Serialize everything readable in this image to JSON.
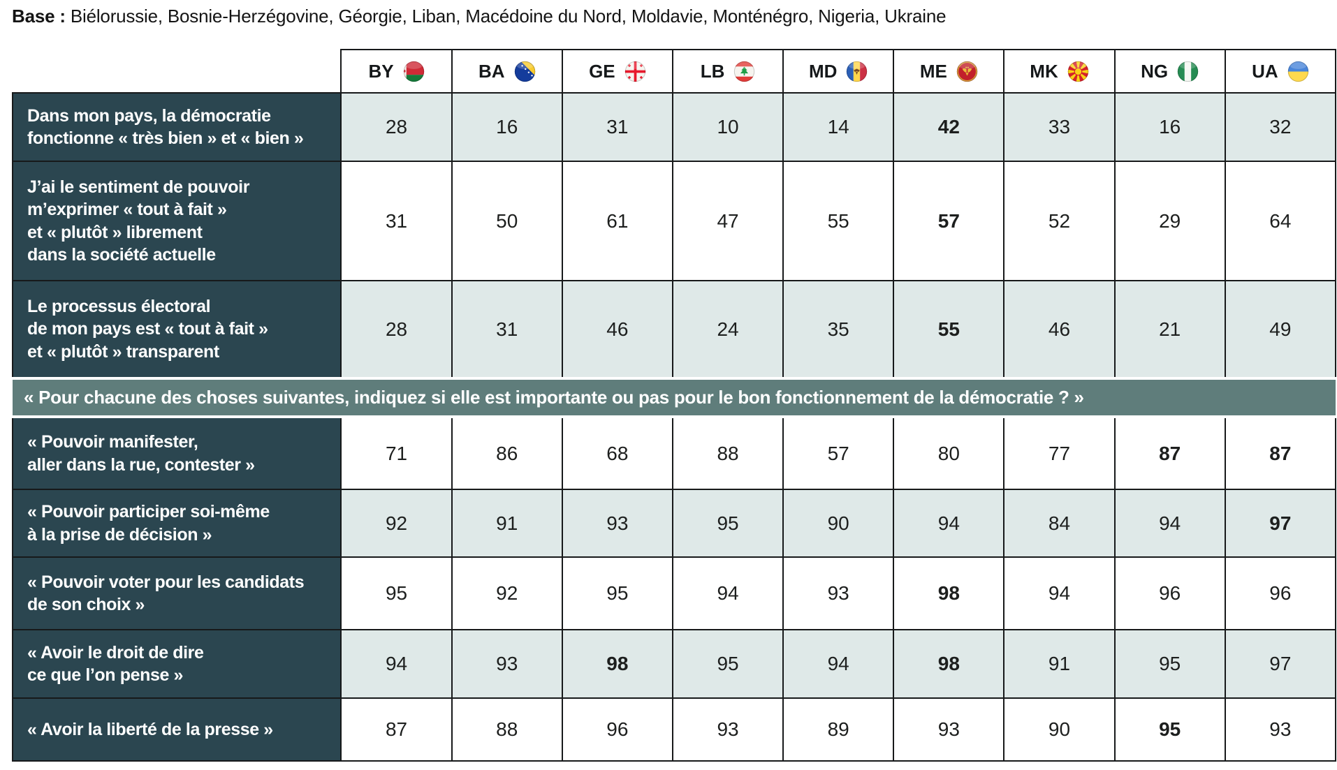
{
  "base": {
    "label": "Base :",
    "countries": "Biélorussie, Bosnie-Herzégovine, Géorgie, Liban, Macédoine du Nord, Moldavie, Monténégro, Nigeria, Ukraine"
  },
  "colors": {
    "label_bg": "#2b4650",
    "shaded_cell_bg": "#dfe9e8",
    "banner_bg": "#5f7d7b",
    "border": "#17191a",
    "label_text": "#ffffff",
    "value_text": "#1d1f1e"
  },
  "table": {
    "columns": [
      {
        "code": "BY",
        "flag_icon": "belarus-flag-icon"
      },
      {
        "code": "BA",
        "flag_icon": "bosnia-herzegovina-flag-icon"
      },
      {
        "code": "GE",
        "flag_icon": "georgia-flag-icon"
      },
      {
        "code": "LB",
        "flag_icon": "lebanon-flag-icon"
      },
      {
        "code": "MD",
        "flag_icon": "moldova-flag-icon"
      },
      {
        "code": "ME",
        "flag_icon": "montenegro-flag-icon"
      },
      {
        "code": "MK",
        "flag_icon": "north-macedonia-flag-icon"
      },
      {
        "code": "NG",
        "flag_icon": "nigeria-flag-icon"
      },
      {
        "code": "UA",
        "flag_icon": "ukraine-flag-icon"
      }
    ],
    "rows": [
      {
        "type": "data",
        "label": "Dans mon pays, la démocratie\nfonctionne « très bien » et « bien »",
        "values": [
          "28",
          "16",
          "31",
          "10",
          "14",
          "42",
          "33",
          "16",
          "32"
        ],
        "bold_indices": [
          5
        ],
        "shaded": true
      },
      {
        "type": "data",
        "label": "J’ai le sentiment de pouvoir\nm’exprimer « tout à fait »\net « plutôt » librement\ndans la société actuelle",
        "values": [
          "31",
          "50",
          "61",
          "47",
          "55",
          "57",
          "52",
          "29",
          "64"
        ],
        "bold_indices": [
          5
        ],
        "shaded": false
      },
      {
        "type": "data",
        "label": "Le processus électoral\nde mon pays est « tout à fait »\net « plutôt » transparent",
        "values": [
          "28",
          "31",
          "46",
          "24",
          "35",
          "55",
          "46",
          "21",
          "49"
        ],
        "bold_indices": [
          5
        ],
        "shaded": true
      },
      {
        "type": "banner",
        "label": "« Pour chacune des choses suivantes, indiquez si elle est importante ou pas pour le bon fonctionnement de la démocratie ? »"
      },
      {
        "type": "data",
        "label": "« Pouvoir manifester,\naller dans la rue, contester »",
        "values": [
          "71",
          "86",
          "68",
          "88",
          "57",
          "80",
          "77",
          "87",
          "87"
        ],
        "bold_indices": [
          7,
          8
        ],
        "shaded": false
      },
      {
        "type": "data",
        "label": "« Pouvoir participer soi-même\nà la prise de décision »",
        "values": [
          "92",
          "91",
          "93",
          "95",
          "90",
          "94",
          "84",
          "94",
          "97"
        ],
        "bold_indices": [
          8
        ],
        "shaded": true
      },
      {
        "type": "data",
        "label": "« Pouvoir voter pour les candidats\nde son choix »",
        "values": [
          "95",
          "92",
          "95",
          "94",
          "93",
          "98",
          "94",
          "96",
          "96"
        ],
        "bold_indices": [
          5
        ],
        "shaded": false
      },
      {
        "type": "data",
        "label": "« Avoir le droit de dire\nce que l’on pense »",
        "values": [
          "94",
          "93",
          "98",
          "95",
          "94",
          "98",
          "91",
          "95",
          "97"
        ],
        "bold_indices": [
          2,
          5
        ],
        "shaded": true
      },
      {
        "type": "data",
        "label": "« Avoir la liberté de la presse »",
        "values": [
          "87",
          "88",
          "96",
          "93",
          "89",
          "93",
          "90",
          "95",
          "93"
        ],
        "bold_indices": [
          7
        ],
        "shaded": false
      }
    ]
  },
  "chart_data": {
    "type": "table",
    "title": "",
    "base": "Biélorussie, Bosnie-Herzégovine, Géorgie, Liban, Macédoine du Nord, Moldavie, Monténégro, Nigeria, Ukraine",
    "columns": [
      "BY",
      "BA",
      "GE",
      "LB",
      "MD",
      "ME",
      "MK",
      "NG",
      "UA"
    ],
    "section_header": "« Pour chacune des choses suivantes, indiquez si elle est importante ou pas pour le bon fonctionnement de la démocratie ? »",
    "rows": [
      {
        "label": "Dans mon pays, la démocratie fonctionne « très bien » et « bien »",
        "values": [
          28,
          16,
          31,
          10,
          14,
          42,
          33,
          16,
          32
        ]
      },
      {
        "label": "J’ai le sentiment de pouvoir m’exprimer « tout à fait » et « plutôt » librement dans la société actuelle",
        "values": [
          31,
          50,
          61,
          47,
          55,
          57,
          52,
          29,
          64
        ]
      },
      {
        "label": "Le processus électoral de mon pays est « tout à fait » et « plutôt » transparent",
        "values": [
          28,
          31,
          46,
          24,
          35,
          55,
          46,
          21,
          49
        ]
      },
      {
        "label": "« Pouvoir manifester, aller dans la rue, contester »",
        "values": [
          71,
          86,
          68,
          88,
          57,
          80,
          77,
          87,
          87
        ]
      },
      {
        "label": "« Pouvoir participer soi-même à la prise de décision »",
        "values": [
          92,
          91,
          93,
          95,
          90,
          94,
          84,
          94,
          97
        ]
      },
      {
        "label": "« Pouvoir voter pour les candidats de son choix »",
        "values": [
          95,
          92,
          95,
          94,
          93,
          98,
          94,
          96,
          96
        ]
      },
      {
        "label": "« Avoir le droit de dire ce que l’on pense »",
        "values": [
          94,
          93,
          98,
          95,
          94,
          98,
          91,
          95,
          97
        ]
      },
      {
        "label": "« Avoir la liberté de la presse »",
        "values": [
          87,
          88,
          96,
          93,
          89,
          93,
          90,
          95,
          93
        ]
      }
    ]
  }
}
